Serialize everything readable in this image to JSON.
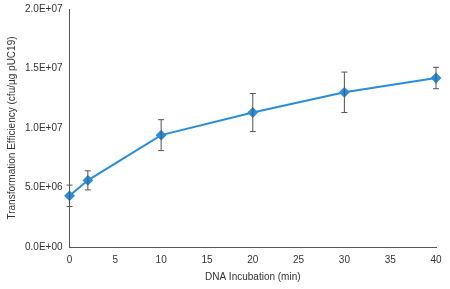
{
  "chart_data": {
    "type": "line",
    "x_label": "DNA Incubation (min)",
    "y_label": "Transformation Efficiency (cfu/µg pUC19)",
    "x": [
      0,
      2,
      10,
      20,
      30,
      40
    ],
    "values": [
      4300000,
      5600000,
      9400000,
      11300000,
      13000000,
      14200000
    ],
    "errors": [
      900000,
      800000,
      1300000,
      1600000,
      1700000,
      900000
    ],
    "color": "#2a8ddb",
    "marker": "diamond",
    "line_style": "solid",
    "grid": false,
    "xlim": [
      0,
      40
    ],
    "xticks": [
      0,
      5,
      10,
      15,
      20,
      25,
      30,
      35,
      40
    ],
    "ylim": [
      0,
      20000000
    ],
    "yticks": [
      {
        "value": 0,
        "label": "0.0E+00"
      },
      {
        "value": 5000000,
        "label": "5.0E+06"
      },
      {
        "value": 10000000,
        "label": "1.0E+07"
      },
      {
        "value": 15000000,
        "label": "1.5E+07"
      },
      {
        "value": 20000000,
        "label": "2.0E+07"
      }
    ]
  }
}
